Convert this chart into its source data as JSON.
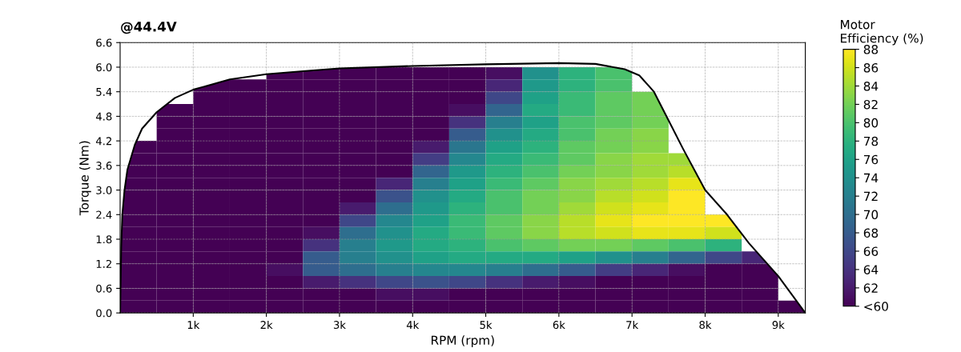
{
  "chart_data": {
    "type": "heatmap",
    "title": "@44.4V",
    "xlabel": "RPM (rpm)",
    "ylabel": "Torque (Nm)",
    "clabel": "Motor\nEfficiency (%)",
    "x": [
      250,
      750,
      1250,
      1750,
      2250,
      2750,
      3250,
      3750,
      4250,
      4750,
      5250,
      5750,
      6250,
      6750,
      7250,
      7750,
      8250,
      8750,
      9250
    ],
    "y": [
      5.85,
      5.55,
      5.25,
      4.95,
      4.65,
      4.35,
      4.05,
      3.75,
      3.45,
      3.15,
      2.85,
      2.55,
      2.25,
      1.95,
      1.65,
      1.35,
      1.05,
      0.75,
      0.45,
      0.15
    ],
    "cells": [
      [
        null,
        null,
        null,
        null,
        60,
        60,
        60,
        60,
        60,
        60,
        61,
        74,
        78,
        80,
        null,
        null,
        null,
        null,
        null
      ],
      [
        null,
        null,
        60,
        60,
        60,
        60,
        60,
        60,
        60,
        60,
        63,
        75,
        78,
        80,
        null,
        null,
        null,
        null,
        null
      ],
      [
        null,
        null,
        60,
        60,
        60,
        60,
        60,
        60,
        60,
        60,
        66,
        76,
        79,
        81,
        82,
        null,
        null,
        null,
        null
      ],
      [
        null,
        60,
        60,
        60,
        60,
        60,
        60,
        60,
        60,
        61,
        69,
        77,
        79,
        81,
        82,
        null,
        null,
        null,
        null
      ],
      [
        null,
        60,
        60,
        60,
        60,
        60,
        60,
        60,
        60,
        64,
        72,
        76,
        80,
        81,
        82,
        null,
        null,
        null,
        null
      ],
      [
        null,
        60,
        60,
        60,
        60,
        60,
        60,
        60,
        60,
        68,
        74,
        77,
        80,
        82,
        83,
        null,
        null,
        null,
        null
      ],
      [
        60,
        60,
        60,
        60,
        60,
        60,
        60,
        60,
        62,
        71,
        76,
        78,
        81,
        82,
        83,
        null,
        null,
        null,
        null
      ],
      [
        60,
        60,
        60,
        60,
        60,
        60,
        60,
        60,
        65,
        73,
        77,
        79,
        81,
        83,
        84,
        84,
        null,
        null,
        null
      ],
      [
        60,
        60,
        60,
        60,
        60,
        60,
        60,
        60,
        69,
        75,
        78,
        80,
        82,
        83,
        84,
        85,
        null,
        null,
        null
      ],
      [
        60,
        60,
        60,
        60,
        60,
        60,
        60,
        63,
        72,
        76,
        79,
        81,
        83,
        84,
        85,
        87,
        null,
        null,
        null
      ],
      [
        60,
        60,
        60,
        60,
        60,
        60,
        60,
        67,
        74,
        77,
        80,
        82,
        83,
        85,
        86,
        88,
        null,
        null,
        null
      ],
      [
        60,
        60,
        60,
        60,
        60,
        60,
        62,
        70,
        75,
        78,
        80,
        82,
        84,
        86,
        87,
        88,
        null,
        null,
        null
      ],
      [
        60,
        60,
        60,
        60,
        60,
        60,
        66,
        73,
        76,
        79,
        81,
        83,
        85,
        87,
        88,
        88,
        88,
        null,
        null
      ],
      [
        60,
        60,
        60,
        60,
        60,
        61,
        70,
        74,
        77,
        79,
        81,
        83,
        85,
        86,
        87,
        87,
        86,
        null,
        null
      ],
      [
        60,
        60,
        60,
        60,
        60,
        64,
        72,
        75,
        77,
        78,
        80,
        81,
        82,
        82,
        81,
        80,
        78,
        null,
        null
      ],
      [
        60,
        60,
        60,
        60,
        60,
        68,
        72,
        74,
        76,
        77,
        77,
        77,
        76,
        74,
        72,
        69,
        66,
        63,
        null
      ],
      [
        60,
        60,
        60,
        60,
        61,
        68,
        70,
        72,
        73,
        73,
        72,
        70,
        68,
        65,
        63,
        61,
        60,
        60,
        null
      ],
      [
        60,
        60,
        60,
        60,
        60,
        62,
        64,
        66,
        67,
        66,
        64,
        62,
        61,
        60,
        60,
        60,
        60,
        60,
        null
      ],
      [
        60,
        60,
        60,
        60,
        60,
        60,
        60,
        61,
        61,
        60,
        60,
        60,
        60,
        60,
        60,
        60,
        60,
        60,
        null
      ],
      [
        60,
        60,
        60,
        60,
        60,
        60,
        60,
        60,
        60,
        60,
        60,
        60,
        60,
        60,
        60,
        60,
        60,
        60,
        60
      ]
    ],
    "clim": [
      60,
      88
    ],
    "cticks": [
      {
        "value": 60,
        "label": "<60"
      },
      62,
      64,
      66,
      68,
      70,
      72,
      74,
      76,
      78,
      80,
      82,
      84,
      86,
      88
    ],
    "series": [
      {
        "type": "line",
        "color": "#000000",
        "x": [
          0,
          15,
          30,
          60,
          100,
          200,
          300,
          500,
          750,
          1000,
          1500,
          2000,
          2500,
          3000,
          4000,
          5000,
          6000,
          6500,
          6900,
          7100,
          7300,
          7500,
          7700,
          8000,
          8300,
          8600,
          9000,
          9370
        ],
        "values": [
          0,
          1.6,
          2.4,
          3.0,
          3.5,
          4.1,
          4.5,
          4.9,
          5.25,
          5.45,
          5.7,
          5.83,
          5.9,
          5.97,
          6.03,
          6.07,
          6.1,
          6.08,
          5.95,
          5.8,
          5.4,
          4.7,
          4.0,
          3.0,
          2.4,
          1.7,
          0.9,
          0
        ]
      }
    ],
    "xlim": [
      0,
      9370
    ],
    "xticks": [
      {
        "value": 1000,
        "label": "1k"
      },
      {
        "value": 2000,
        "label": "2k"
      },
      {
        "value": 3000,
        "label": "3k"
      },
      {
        "value": 4000,
        "label": "4k"
      },
      {
        "value": 5000,
        "label": "5k"
      },
      {
        "value": 6000,
        "label": "6k"
      },
      {
        "value": 7000,
        "label": "7k"
      },
      {
        "value": 8000,
        "label": "8k"
      },
      {
        "value": 9000,
        "label": "9k"
      }
    ],
    "ylim": [
      0,
      6.6
    ],
    "yticks": [
      {
        "value": 0,
        "label": "0.0"
      },
      {
        "value": 0.6,
        "label": "0.6"
      },
      {
        "value": 1.2,
        "label": "1.2"
      },
      {
        "value": 1.8,
        "label": "1.8"
      },
      {
        "value": 2.4,
        "label": "2.4"
      },
      {
        "value": 3.0,
        "label": "3.0"
      },
      {
        "value": 3.6,
        "label": "3.6"
      },
      {
        "value": 4.2,
        "label": "4.2"
      },
      {
        "value": 4.8,
        "label": "4.8"
      },
      {
        "value": 5.4,
        "label": "5.4"
      },
      {
        "value": 6.0,
        "label": "6.0"
      },
      {
        "value": 6.6,
        "label": "6.6"
      }
    ],
    "grid": true,
    "line_style": "solid"
  }
}
